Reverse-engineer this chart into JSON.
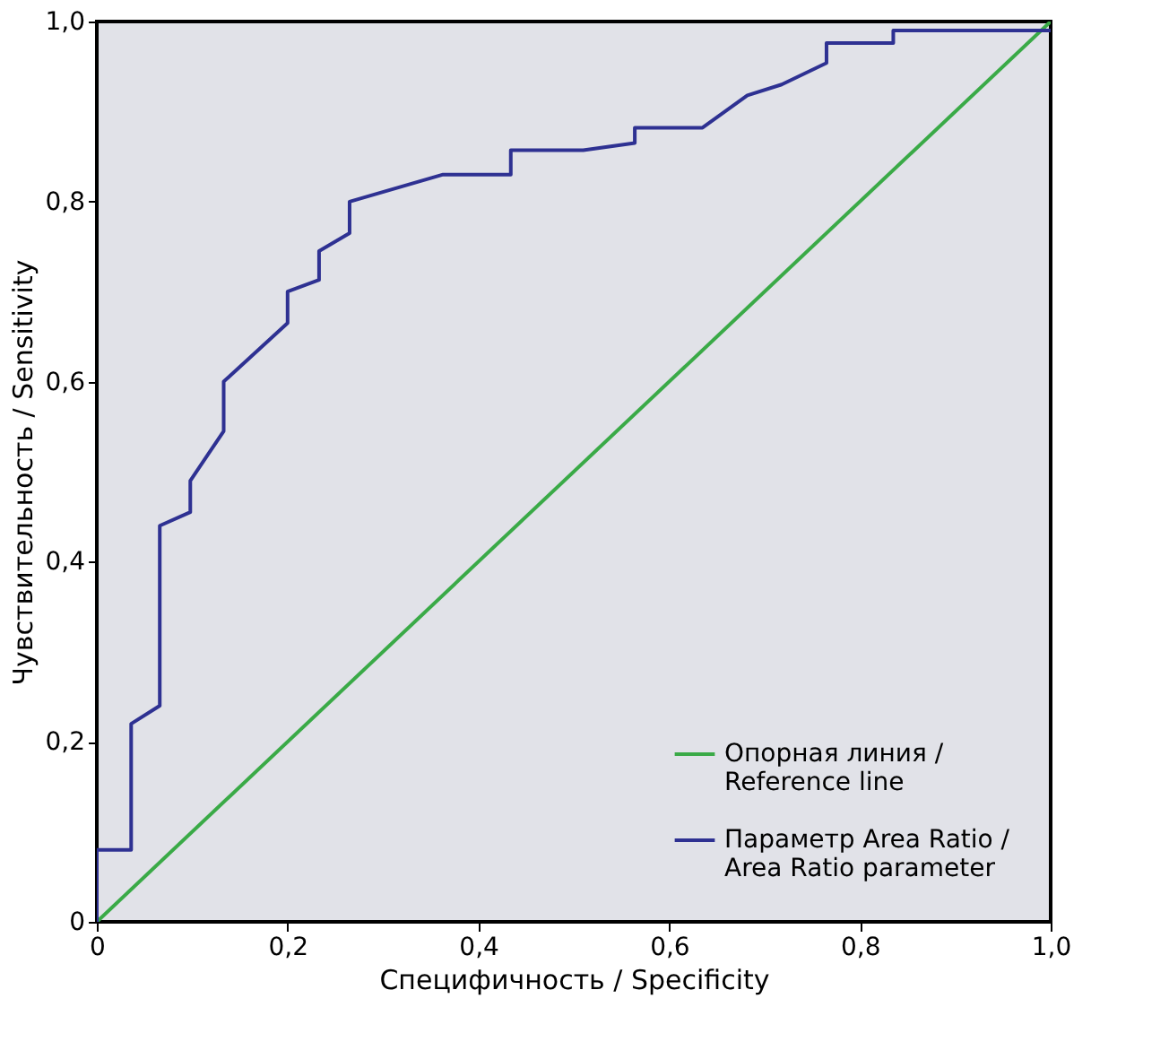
{
  "chart_data": {
    "type": "line",
    "xlabel": "Специфичность / Specificity",
    "ylabel": "Чувствительность / Sensitivity",
    "xlim": [
      0,
      1
    ],
    "ylim": [
      0,
      1
    ],
    "xticks": [
      0,
      {
        "value": 0.2,
        "label": "0,2"
      },
      {
        "value": 0.4,
        "label": "0,4"
      },
      {
        "value": 0.6,
        "label": "0,6"
      },
      {
        "value": 0.8,
        "label": "0,8"
      },
      {
        "value": 1,
        "label": "1,0"
      }
    ],
    "yticks": [
      0,
      {
        "value": 0.2,
        "label": "0,2"
      },
      {
        "value": 0.4,
        "label": "0,4"
      },
      {
        "value": 0.6,
        "label": "0,6"
      },
      {
        "value": 0.8,
        "label": "0,8"
      },
      {
        "value": 1,
        "label": "1,0"
      }
    ],
    "grid": false,
    "legend": "bottom right",
    "marker": "none",
    "line_style": "solid",
    "series": [
      {
        "name": "Опорная линия / Reference line",
        "color": "#3aaa47",
        "x": [
          0,
          1
        ],
        "values": [
          0,
          1
        ]
      },
      {
        "name": "Параметр Area Ratio / Area Ratio parameter",
        "color": "#2e3192",
        "x": [
          0,
          0,
          0.036,
          0.036,
          0.066,
          0.066,
          0.098,
          0.098,
          0.133,
          0.133,
          0.2,
          0.2,
          0.233,
          0.233,
          0.265,
          0.265,
          0.363,
          0.434,
          0.434,
          0.51,
          0.564,
          0.564,
          0.635,
          0.682,
          0.718,
          0.765,
          0.765,
          0.835,
          0.835,
          1
        ],
        "values": [
          0,
          0.08,
          0.08,
          0.22,
          0.24,
          0.44,
          0.455,
          0.49,
          0.545,
          0.6,
          0.665,
          0.7,
          0.713,
          0.745,
          0.765,
          0.8,
          0.83,
          0.83,
          0.857,
          0.857,
          0.865,
          0.882,
          0.882,
          0.918,
          0.93,
          0.954,
          0.976,
          0.976,
          0.99,
          0.99
        ]
      }
    ]
  }
}
